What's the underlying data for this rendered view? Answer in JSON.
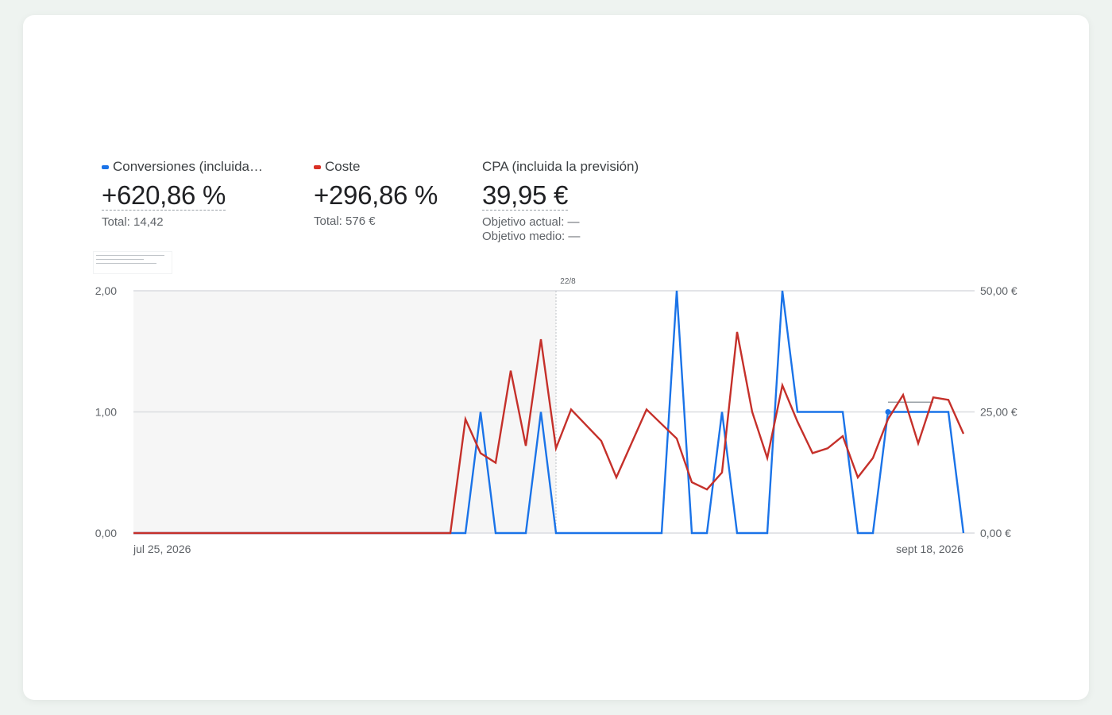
{
  "metrics": [
    {
      "label": "Conversiones (incluida…",
      "value": "+620,86 %",
      "total": "Total: 14,42",
      "color": "#1a73e8"
    },
    {
      "label": "Coste",
      "value": "+296,86 %",
      "total": "Total: 576 €",
      "color": "#d93025"
    },
    {
      "label": "CPA (incluida la previsión)",
      "value": "39,95 €",
      "target_current": "Objetivo actual: —",
      "target_avg": "Objetivo medio: —"
    }
  ],
  "chart_data": {
    "type": "line",
    "x_start": "2026-07-25",
    "x_end": "2026-09-18",
    "x_tick_labels": [
      "jul 25, 2026",
      "sept 18, 2026"
    ],
    "marker_label": "22/8",
    "marker_date": "2026-08-22",
    "shaded_until": "2026-08-22",
    "y_left": {
      "ticks": [
        "0,00",
        "1,00",
        "2,00"
      ],
      "ylim": [
        0,
        2
      ]
    },
    "y_right": {
      "ticks": [
        "0,00 €",
        "25,00 €",
        "50,00 €"
      ],
      "ylim": [
        0,
        50
      ]
    },
    "grid": true,
    "series": [
      {
        "name": "Conversiones (incluida…",
        "axis": "left",
        "color": "#1a73e8",
        "x": [
          "2026-07-25",
          "2026-08-15",
          "2026-08-16",
          "2026-08-17",
          "2026-08-18",
          "2026-08-19",
          "2026-08-20",
          "2026-08-21",
          "2026-08-22",
          "2026-08-23",
          "2026-08-24",
          "2026-08-25",
          "2026-08-26",
          "2026-08-27",
          "2026-08-28",
          "2026-08-29",
          "2026-08-30",
          "2026-08-31",
          "2026-09-01",
          "2026-09-02",
          "2026-09-03",
          "2026-09-04",
          "2026-09-05",
          "2026-09-06",
          "2026-09-07",
          "2026-09-08",
          "2026-09-09",
          "2026-09-10",
          "2026-09-11",
          "2026-09-12",
          "2026-09-13",
          "2026-09-14",
          "2026-09-15",
          "2026-09-16",
          "2026-09-17",
          "2026-09-18"
        ],
        "values": [
          0,
          0,
          0,
          1,
          0,
          0,
          0,
          1,
          0,
          0,
          0,
          0,
          0,
          0,
          0,
          0,
          2,
          0,
          0,
          1,
          0,
          0,
          0,
          2,
          1,
          1,
          1,
          1,
          0,
          0,
          1,
          1,
          1,
          1,
          1,
          0
        ]
      },
      {
        "name": "Coste",
        "axis": "right",
        "color": "#c5302a",
        "x": [
          "2026-07-25",
          "2026-08-15",
          "2026-08-16",
          "2026-08-17",
          "2026-08-18",
          "2026-08-19",
          "2026-08-20",
          "2026-08-21",
          "2026-08-22",
          "2026-08-23",
          "2026-08-25",
          "2026-08-26",
          "2026-08-28",
          "2026-08-29",
          "2026-08-30",
          "2026-08-31",
          "2026-09-01",
          "2026-09-02",
          "2026-09-03",
          "2026-09-04",
          "2026-09-05",
          "2026-09-06",
          "2026-09-07",
          "2026-09-08",
          "2026-09-09",
          "2026-09-10",
          "2026-09-11",
          "2026-09-12",
          "2026-09-13",
          "2026-09-14",
          "2026-09-15",
          "2026-09-16",
          "2026-09-17",
          "2026-09-18"
        ],
        "values": [
          0,
          0,
          23.5,
          16.5,
          14.5,
          33.5,
          18,
          40,
          17.5,
          25.5,
          19,
          11.5,
          25.5,
          22.5,
          19.5,
          10.5,
          9,
          12.5,
          41.5,
          25,
          15.5,
          30.5,
          23,
          16.5,
          17.5,
          20,
          11.5,
          15.5,
          23.5,
          28.5,
          18.5,
          28,
          27.5,
          20.5
        ]
      }
    ],
    "cpa_reference_level": 27
  }
}
